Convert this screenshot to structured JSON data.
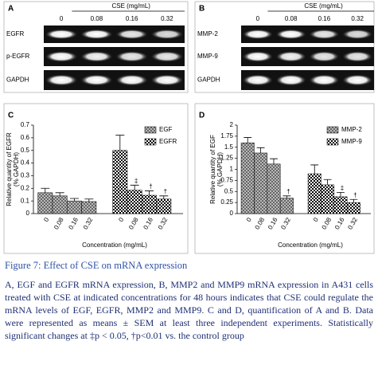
{
  "gels": [
    {
      "panel": "A",
      "header": "CSE (mg/mL)",
      "lanes": [
        "0",
        "0.08",
        "0.16",
        "0.32"
      ],
      "rows": [
        "EGFR",
        "p-EGFR",
        "GAPDH"
      ]
    },
    {
      "panel": "B",
      "header": "CSE (mg/mL)",
      "lanes": [
        "0",
        "0.08",
        "0.16",
        "0.32"
      ],
      "rows": [
        "MMP-2",
        "MMP-9",
        "GAPDH"
      ]
    }
  ],
  "chart_data": [
    {
      "type": "bar",
      "panel": "C",
      "ylabel": [
        "Relative quantity of EGFR",
        "(% GAPDH)"
      ],
      "xlabel": "Concentration (mg/mL)",
      "categories": [
        "0",
        "0.08",
        "0.16",
        "0.32"
      ],
      "series": [
        {
          "name": "EGF",
          "color": "#555555",
          "pattern": "hatch",
          "values": [
            0.165,
            0.14,
            0.1,
            0.095
          ],
          "errors": [
            0.035,
            0.025,
            0.02,
            0.02
          ],
          "annotations": [
            null,
            null,
            null,
            null
          ]
        },
        {
          "name": "EGFR",
          "color": "#000000",
          "pattern": "checker",
          "values": [
            0.5,
            0.185,
            0.145,
            0.115
          ],
          "errors": [
            0.12,
            0.04,
            0.035,
            0.025
          ],
          "annotations": [
            null,
            "‡",
            "†",
            "†"
          ]
        }
      ],
      "ylim": [
        0,
        0.7
      ],
      "yticks": [
        0,
        0.1,
        0.2,
        0.3,
        0.4,
        0.5,
        0.6,
        0.7
      ],
      "legend": "upper right"
    },
    {
      "type": "bar",
      "panel": "D",
      "ylabel": [
        "Relative quantity of EGF",
        "(% GAPDH)"
      ],
      "xlabel": "Concentration (mg/mL)",
      "categories": [
        "0",
        "0.08",
        "0.16",
        "0.32"
      ],
      "series": [
        {
          "name": "MMP-2",
          "color": "#555555",
          "pattern": "hatch",
          "values": [
            1.6,
            1.37,
            1.12,
            0.35
          ],
          "errors": [
            0.12,
            0.12,
            0.12,
            0.05
          ],
          "annotations": [
            null,
            null,
            null,
            "†"
          ]
        },
        {
          "name": "MMP-9",
          "color": "#000000",
          "pattern": "checker",
          "values": [
            0.9,
            0.65,
            0.38,
            0.25
          ],
          "errors": [
            0.2,
            0.12,
            0.1,
            0.07
          ],
          "annotations": [
            null,
            null,
            "‡",
            "†"
          ]
        }
      ],
      "ylim": [
        0,
        2
      ],
      "yticks": [
        0,
        0.25,
        0.5,
        0.75,
        1,
        1.25,
        1.5,
        1.75,
        2
      ],
      "legend": "upper right"
    }
  ],
  "caption": {
    "title": "Figure 7: Effect of CSE on mRNA expression",
    "body": "A, EGF and EGFR mRNA expression, B, MMP2 and MMP9 mRNA expression in A431 cells treated with CSE at indicated concentrations for 48 hours indicates that CSE could regulate the mRNA levels of EGF, EGFR, MMP2 and MMP9. C and D, quantification of A and B. Data were represented as means ± SEM at least three independent experiments. Statistically significant changes at ‡p < 0.05, †p<0.01 vs. the control group"
  }
}
